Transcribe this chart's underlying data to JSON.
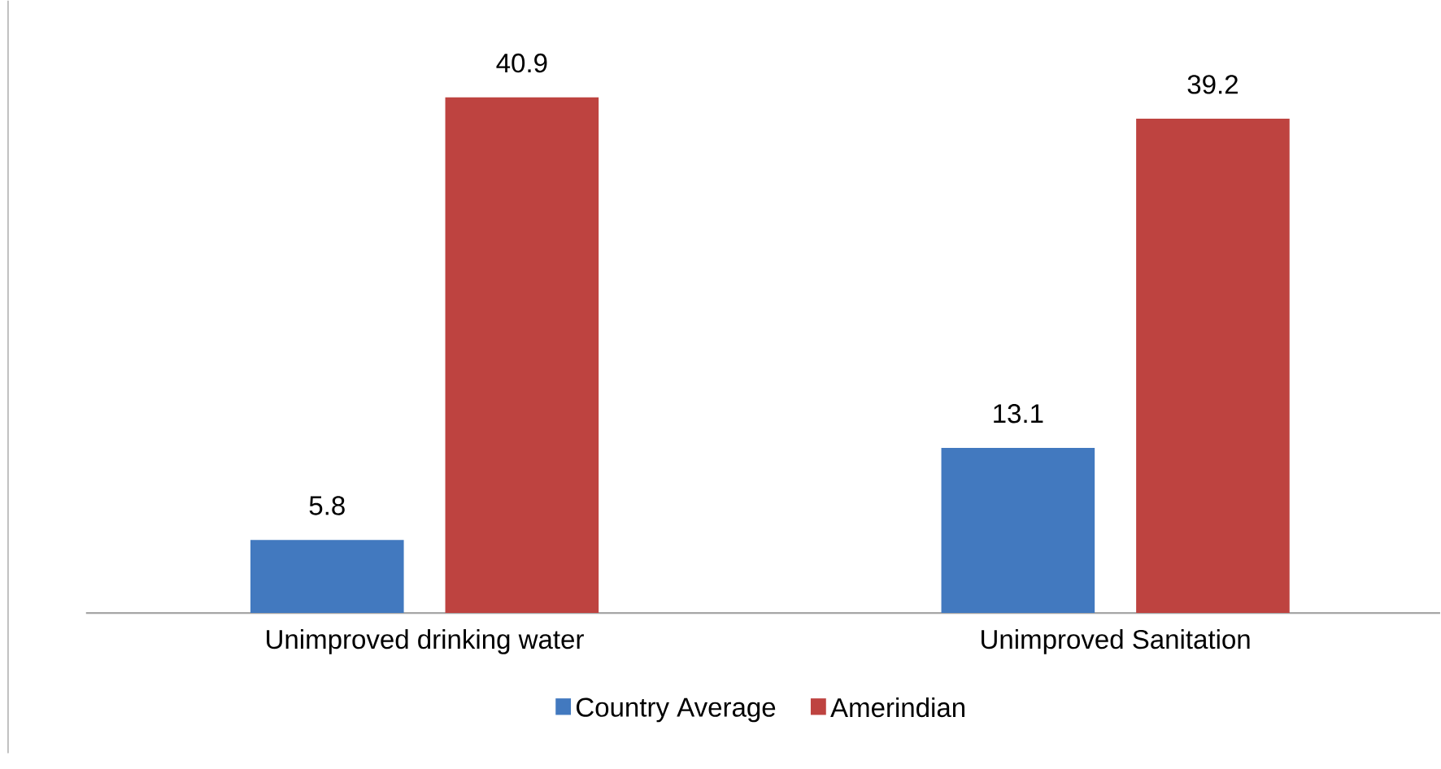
{
  "chart_data": {
    "type": "bar",
    "categories": [
      "Unimproved drinking water",
      "Unimproved Sanitation"
    ],
    "series": [
      {
        "name": "Country Average",
        "color": "#4279bf",
        "values": [
          5.8,
          13.1
        ]
      },
      {
        "name": "Amerindian",
        "color": "#be4340",
        "values": [
          40.9,
          39.2
        ]
      }
    ],
    "data_labels": true,
    "legend": "bottom"
  }
}
